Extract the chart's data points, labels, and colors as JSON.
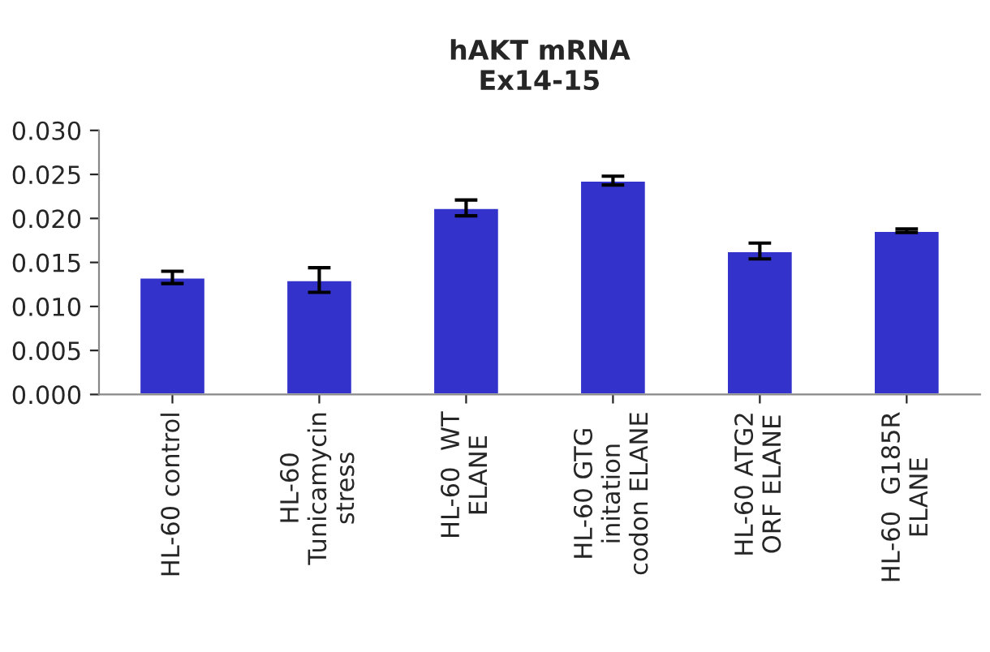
{
  "chart_data": {
    "type": "bar",
    "title": "hAKT mRNA\nEx14-15",
    "categories": [
      "HL-60 control",
      "HL-60\nTunicamycin\nstress",
      "HL-60  WT\nELANE",
      "HL-60 GTG\ninitation\ncodon ELANE",
      "HL-60 ATG2\nORF ELANE",
      "HL-60  G185R\nELANE"
    ],
    "values": [
      0.0133,
      0.013,
      0.0212,
      0.0243,
      0.0163,
      0.0186
    ],
    "errors": [
      0.0007,
      0.0014,
      0.0009,
      0.0005,
      0.0009,
      0.0002
    ],
    "color": "#3333cc",
    "ylim": [
      0,
      0.03
    ],
    "yticks": [
      {
        "value": 0,
        "label": "0.000"
      },
      {
        "value": 0.005,
        "label": "0.005"
      },
      {
        "value": 0.01,
        "label": "0.010"
      },
      {
        "value": 0.015,
        "label": "0.015"
      },
      {
        "value": 0.02,
        "label": "0.020"
      },
      {
        "value": 0.025,
        "label": "0.025"
      },
      {
        "value": 0.03,
        "label": "0.030"
      }
    ],
    "grid": false,
    "legend": false
  }
}
